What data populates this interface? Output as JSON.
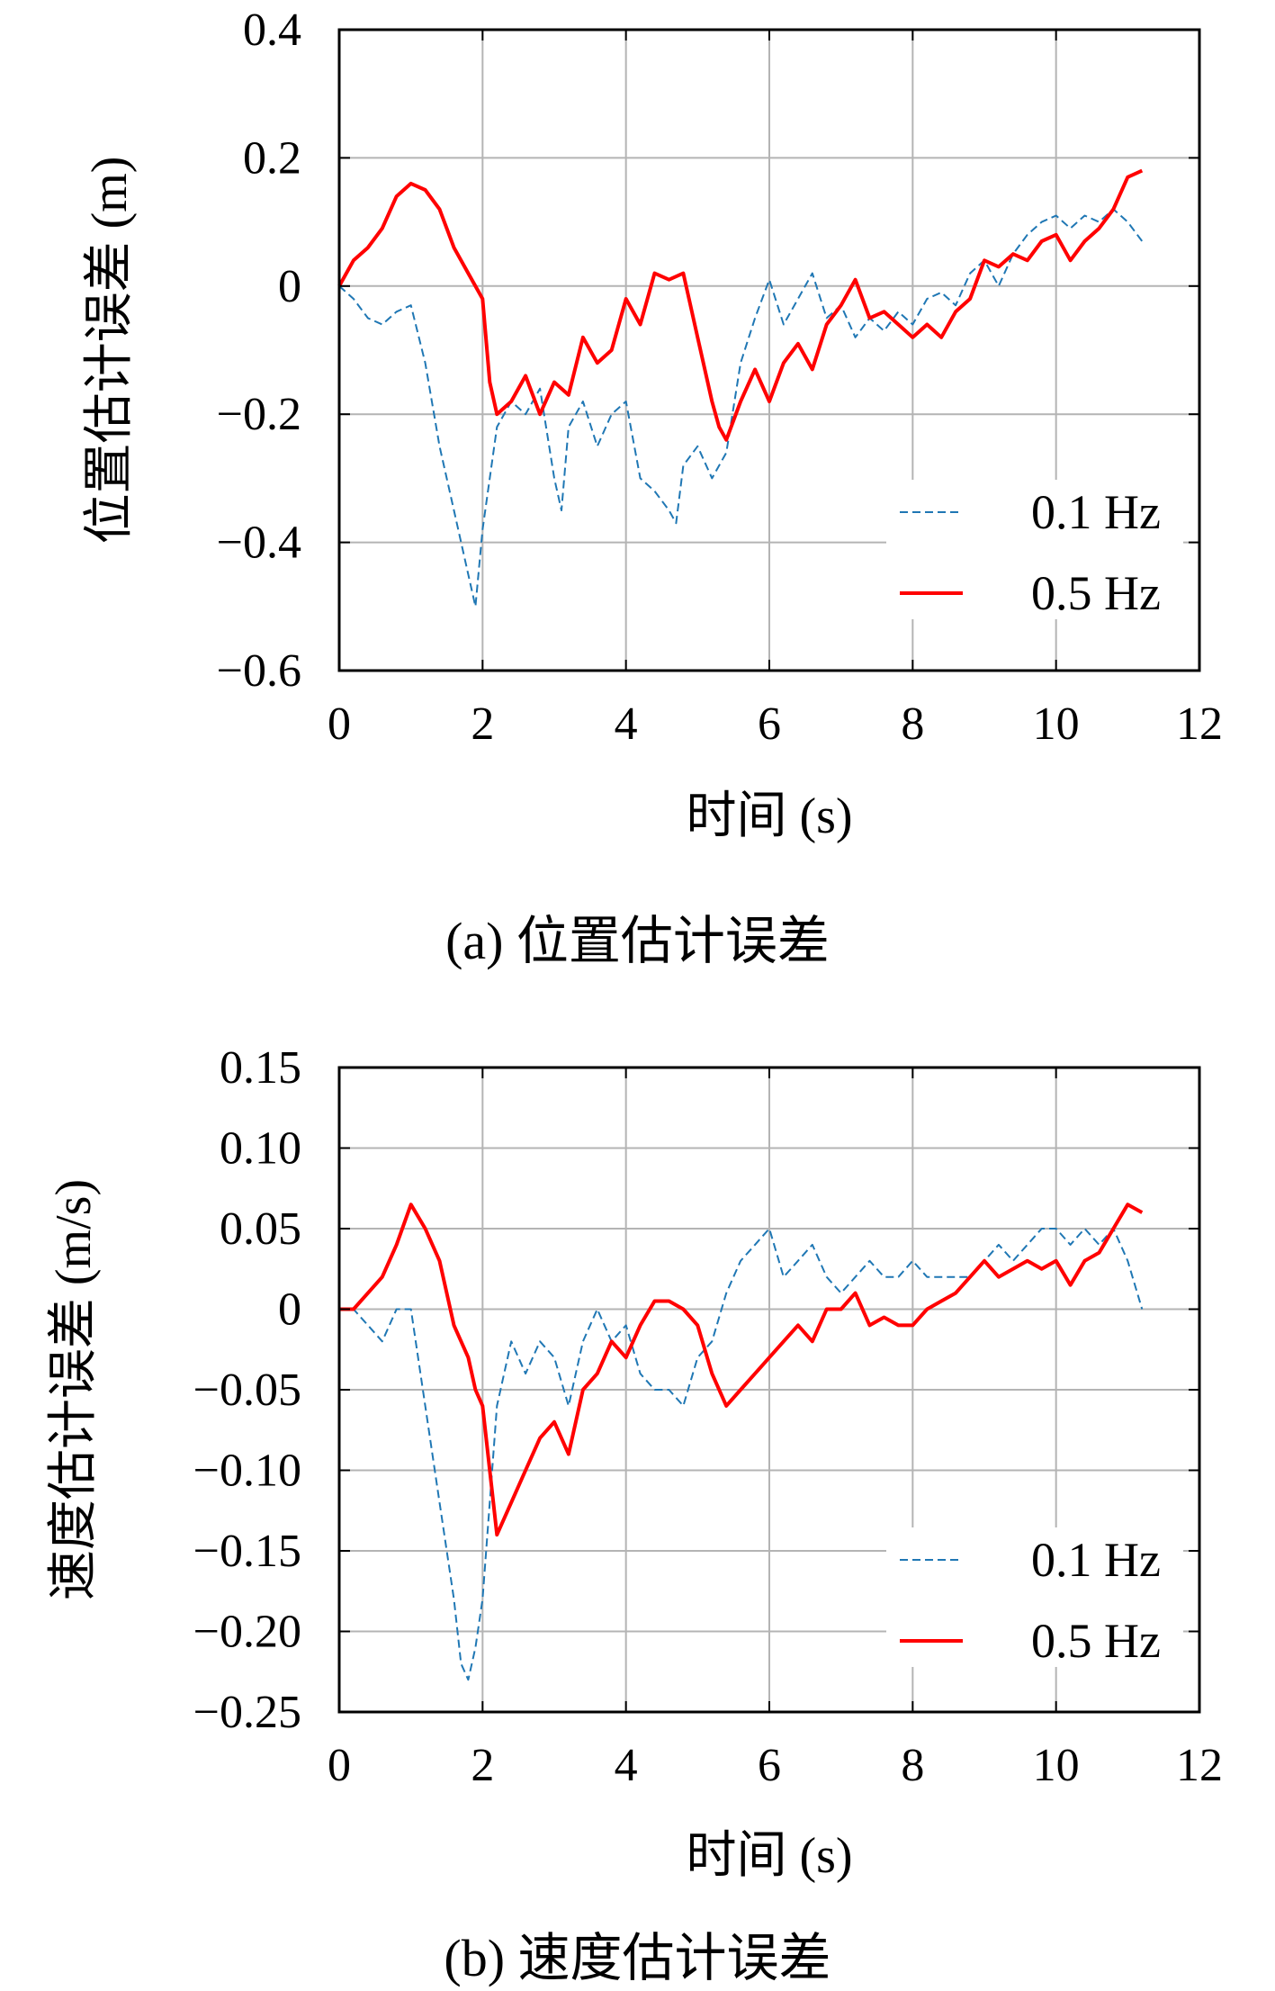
{
  "chart_data": [
    {
      "type": "line",
      "caption": "(a) 位置估计误差",
      "xlabel": "时间 (s)",
      "ylabel": "位置估计误差 (m)",
      "xlim": [
        0,
        12
      ],
      "ylim": [
        -0.6,
        0.4
      ],
      "xticks": [
        0,
        2,
        4,
        6,
        8,
        10,
        12
      ],
      "xtick_labels": [
        "0",
        "2",
        "4",
        "6",
        "8",
        "10",
        "12"
      ],
      "yticks": [
        -0.6,
        -0.4,
        -0.2,
        0,
        0.2,
        0.4
      ],
      "ytick_labels": [
        "−0.6",
        "−0.4",
        "−0.2",
        "0",
        "0.2",
        "0.4"
      ],
      "grid": true,
      "legend_position": "bottom-right",
      "series": [
        {
          "name": "0.1 Hz",
          "color": "#1f77b4",
          "style": "dashed",
          "x": [
            0,
            0.2,
            0.4,
            0.6,
            0.8,
            1.0,
            1.2,
            1.4,
            1.6,
            1.8,
            1.9,
            2.0,
            2.2,
            2.4,
            2.6,
            2.8,
            3.0,
            3.1,
            3.2,
            3.4,
            3.6,
            3.8,
            4.0,
            4.2,
            4.4,
            4.6,
            4.7,
            4.8,
            5.0,
            5.2,
            5.4,
            5.6,
            5.8,
            6.0,
            6.2,
            6.4,
            6.6,
            6.8,
            7.0,
            7.2,
            7.4,
            7.6,
            7.8,
            8.0,
            8.2,
            8.4,
            8.6,
            8.8,
            9.0,
            9.2,
            9.4,
            9.6,
            9.8,
            10.0,
            10.2,
            10.4,
            10.6,
            10.8,
            11.0,
            11.2
          ],
          "y": [
            0.0,
            -0.02,
            -0.05,
            -0.06,
            -0.04,
            -0.03,
            -0.12,
            -0.25,
            -0.35,
            -0.45,
            -0.5,
            -0.38,
            -0.22,
            -0.18,
            -0.2,
            -0.16,
            -0.3,
            -0.35,
            -0.22,
            -0.18,
            -0.25,
            -0.2,
            -0.18,
            -0.3,
            -0.32,
            -0.35,
            -0.37,
            -0.28,
            -0.25,
            -0.3,
            -0.26,
            -0.12,
            -0.05,
            0.01,
            -0.06,
            -0.02,
            0.02,
            -0.05,
            -0.03,
            -0.08,
            -0.05,
            -0.07,
            -0.04,
            -0.06,
            -0.02,
            -0.01,
            -0.03,
            0.02,
            0.04,
            0.0,
            0.05,
            0.08,
            0.1,
            0.11,
            0.09,
            0.11,
            0.1,
            0.12,
            0.1,
            0.07
          ]
        },
        {
          "name": "0.5 Hz",
          "color": "#ff0000",
          "style": "solid",
          "x": [
            0,
            0.2,
            0.4,
            0.6,
            0.8,
            1.0,
            1.2,
            1.4,
            1.6,
            1.8,
            2.0,
            2.1,
            2.2,
            2.4,
            2.6,
            2.8,
            3.0,
            3.2,
            3.4,
            3.6,
            3.8,
            4.0,
            4.2,
            4.4,
            4.6,
            4.8,
            5.0,
            5.2,
            5.3,
            5.4,
            5.6,
            5.8,
            6.0,
            6.2,
            6.4,
            6.6,
            6.8,
            7.0,
            7.2,
            7.4,
            7.6,
            7.8,
            8.0,
            8.2,
            8.4,
            8.6,
            8.8,
            9.0,
            9.2,
            9.4,
            9.6,
            9.8,
            10.0,
            10.2,
            10.4,
            10.6,
            10.8,
            11.0,
            11.2
          ],
          "y": [
            0.0,
            0.04,
            0.06,
            0.09,
            0.14,
            0.16,
            0.15,
            0.12,
            0.06,
            0.02,
            -0.02,
            -0.15,
            -0.2,
            -0.18,
            -0.14,
            -0.2,
            -0.15,
            -0.17,
            -0.08,
            -0.12,
            -0.1,
            -0.02,
            -0.06,
            0.02,
            0.01,
            0.02,
            -0.08,
            -0.18,
            -0.22,
            -0.24,
            -0.18,
            -0.13,
            -0.18,
            -0.12,
            -0.09,
            -0.13,
            -0.06,
            -0.03,
            0.01,
            -0.05,
            -0.04,
            -0.06,
            -0.08,
            -0.06,
            -0.08,
            -0.04,
            -0.02,
            0.04,
            0.03,
            0.05,
            0.04,
            0.07,
            0.08,
            0.04,
            0.07,
            0.09,
            0.12,
            0.17,
            0.18
          ]
        }
      ]
    },
    {
      "type": "line",
      "caption": "(b) 速度估计误差",
      "xlabel": "时间 (s)",
      "ylabel": "速度估计误差 (m/s)",
      "xlim": [
        0,
        12
      ],
      "ylim": [
        -0.25,
        0.15
      ],
      "xticks": [
        0,
        2,
        4,
        6,
        8,
        10,
        12
      ],
      "xtick_labels": [
        "0",
        "2",
        "4",
        "6",
        "8",
        "10",
        "12"
      ],
      "yticks": [
        -0.25,
        -0.2,
        -0.15,
        -0.1,
        -0.05,
        0,
        0.05,
        0.1,
        0.15
      ],
      "ytick_labels": [
        "−0.25",
        "−0.20",
        "−0.15",
        "−0.10",
        "−0.05",
        "0",
        "0.05",
        "0.10",
        "0.15"
      ],
      "grid": true,
      "legend_position": "bottom-right",
      "series": [
        {
          "name": "0.1 Hz",
          "color": "#1f77b4",
          "style": "dashed",
          "x": [
            0,
            0.2,
            0.4,
            0.6,
            0.8,
            1.0,
            1.2,
            1.4,
            1.6,
            1.7,
            1.8,
            1.9,
            2.0,
            2.1,
            2.2,
            2.4,
            2.6,
            2.8,
            3.0,
            3.2,
            3.4,
            3.6,
            3.8,
            4.0,
            4.2,
            4.4,
            4.6,
            4.8,
            5.0,
            5.2,
            5.4,
            5.6,
            5.8,
            6.0,
            6.2,
            6.4,
            6.6,
            6.8,
            7.0,
            7.2,
            7.4,
            7.6,
            7.8,
            8.0,
            8.2,
            8.4,
            8.6,
            8.8,
            9.0,
            9.2,
            9.4,
            9.6,
            9.8,
            10.0,
            10.2,
            10.4,
            10.6,
            10.8,
            11.0,
            11.2
          ],
          "y": [
            0.0,
            0.0,
            -0.01,
            -0.02,
            0.0,
            0.0,
            -0.06,
            -0.12,
            -0.18,
            -0.22,
            -0.23,
            -0.21,
            -0.18,
            -0.12,
            -0.06,
            -0.02,
            -0.04,
            -0.02,
            -0.03,
            -0.06,
            -0.02,
            0.0,
            -0.02,
            -0.01,
            -0.04,
            -0.05,
            -0.05,
            -0.06,
            -0.03,
            -0.02,
            0.01,
            0.03,
            0.04,
            0.05,
            0.02,
            0.03,
            0.04,
            0.02,
            0.01,
            0.02,
            0.03,
            0.02,
            0.02,
            0.03,
            0.02,
            0.02,
            0.02,
            0.02,
            0.03,
            0.04,
            0.03,
            0.04,
            0.05,
            0.05,
            0.04,
            0.05,
            0.04,
            0.05,
            0.03,
            0.0
          ]
        },
        {
          "name": "0.5 Hz",
          "color": "#ff0000",
          "style": "solid",
          "x": [
            0,
            0.2,
            0.4,
            0.6,
            0.8,
            1.0,
            1.2,
            1.4,
            1.6,
            1.8,
            1.9,
            2.0,
            2.1,
            2.2,
            2.4,
            2.6,
            2.8,
            3.0,
            3.2,
            3.4,
            3.6,
            3.8,
            4.0,
            4.2,
            4.4,
            4.6,
            4.8,
            5.0,
            5.2,
            5.4,
            5.6,
            5.8,
            6.0,
            6.2,
            6.4,
            6.6,
            6.8,
            7.0,
            7.2,
            7.4,
            7.6,
            7.8,
            8.0,
            8.2,
            8.4,
            8.6,
            8.8,
            9.0,
            9.2,
            9.4,
            9.6,
            9.8,
            10.0,
            10.2,
            10.4,
            10.6,
            10.8,
            11.0,
            11.2
          ],
          "y": [
            0.0,
            0.0,
            0.01,
            0.02,
            0.04,
            0.065,
            0.05,
            0.03,
            -0.01,
            -0.03,
            -0.05,
            -0.06,
            -0.1,
            -0.14,
            -0.12,
            -0.1,
            -0.08,
            -0.07,
            -0.09,
            -0.05,
            -0.04,
            -0.02,
            -0.03,
            -0.01,
            0.005,
            0.005,
            0.0,
            -0.01,
            -0.04,
            -0.06,
            -0.05,
            -0.04,
            -0.03,
            -0.02,
            -0.01,
            -0.02,
            0.0,
            0.0,
            0.01,
            -0.01,
            -0.005,
            -0.01,
            -0.01,
            0.0,
            0.005,
            0.01,
            0.02,
            0.03,
            0.02,
            0.025,
            0.03,
            0.025,
            0.03,
            0.015,
            0.03,
            0.035,
            0.05,
            0.065,
            0.06
          ]
        }
      ]
    }
  ]
}
